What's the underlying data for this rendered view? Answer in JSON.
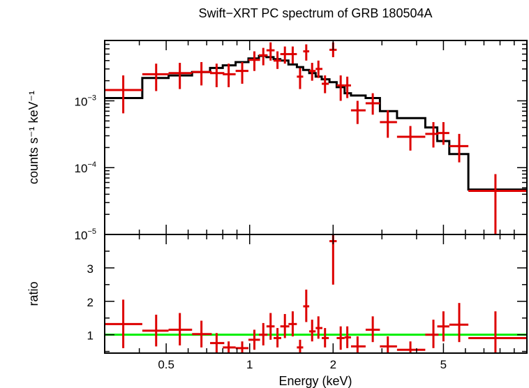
{
  "chart_data": [
    {
      "type": "scatter",
      "title": "Swift−XRT PC spectrum of GRB 180504A",
      "xlabel": "",
      "ylabel": "counts s⁻¹ keV⁻¹",
      "xscale": "log",
      "yscale": "log",
      "xlim": [
        0.3,
        10
      ],
      "ylim": [
        1e-05,
        0.008
      ],
      "yticks": [
        {
          "value": 0.001,
          "base": "10",
          "exp": "−3"
        },
        {
          "value": 0.0001,
          "base": "10",
          "exp": "−4"
        },
        {
          "value": 1e-05,
          "base": "10",
          "exp": "−5"
        }
      ],
      "series": [
        {
          "name": "",
          "color": "#dd0000",
          "points": [
            {
              "x": 0.35,
              "xlo": 0.3,
              "xhi": 0.41,
              "y": 0.00145,
              "ylo": 0.00065,
              "yhi": 0.0024
            },
            {
              "x": 0.46,
              "xlo": 0.41,
              "xhi": 0.51,
              "y": 0.0025,
              "ylo": 0.0014,
              "yhi": 0.0036
            },
            {
              "x": 0.56,
              "xlo": 0.51,
              "xhi": 0.62,
              "y": 0.0026,
              "ylo": 0.0015,
              "yhi": 0.0037
            },
            {
              "x": 0.67,
              "xlo": 0.62,
              "xhi": 0.73,
              "y": 0.0027,
              "ylo": 0.0017,
              "yhi": 0.0038
            },
            {
              "x": 0.76,
              "xlo": 0.72,
              "xhi": 0.81,
              "y": 0.0026,
              "ylo": 0.0016,
              "yhi": 0.0036
            },
            {
              "x": 0.84,
              "xlo": 0.8,
              "xhi": 0.89,
              "y": 0.0025,
              "ylo": 0.0016,
              "yhi": 0.0036
            },
            {
              "x": 0.94,
              "xlo": 0.89,
              "xhi": 0.99,
              "y": 0.0028,
              "ylo": 0.0018,
              "yhi": 0.0038
            },
            {
              "x": 1.04,
              "xlo": 0.99,
              "xhi": 1.09,
              "y": 0.0041,
              "ylo": 0.0028,
              "yhi": 0.0055
            },
            {
              "x": 1.12,
              "xlo": 1.08,
              "xhi": 1.16,
              "y": 0.0048,
              "ylo": 0.0034,
              "yhi": 0.0062
            },
            {
              "x": 1.19,
              "xlo": 1.15,
              "xhi": 1.23,
              "y": 0.0057,
              "ylo": 0.004,
              "yhi": 0.0075
            },
            {
              "x": 1.26,
              "xlo": 1.22,
              "xhi": 1.3,
              "y": 0.004,
              "ylo": 0.003,
              "yhi": 0.0055
            },
            {
              "x": 1.34,
              "xlo": 1.29,
              "xhi": 1.39,
              "y": 0.005,
              "ylo": 0.0036,
              "yhi": 0.0065
            },
            {
              "x": 1.43,
              "xlo": 1.38,
              "xhi": 1.48,
              "y": 0.005,
              "ylo": 0.0036,
              "yhi": 0.0065
            },
            {
              "x": 1.52,
              "xlo": 1.48,
              "xhi": 1.56,
              "y": 0.0023,
              "ylo": 0.0015,
              "yhi": 0.0031
            },
            {
              "x": 1.6,
              "xlo": 1.56,
              "xhi": 1.64,
              "y": 0.0055,
              "ylo": 0.004,
              "yhi": 0.007
            },
            {
              "x": 1.68,
              "xlo": 1.64,
              "xhi": 1.73,
              "y": 0.0028,
              "ylo": 0.002,
              "yhi": 0.0037
            },
            {
              "x": 1.77,
              "xlo": 1.73,
              "xhi": 1.83,
              "y": 0.003,
              "ylo": 0.0022,
              "yhi": 0.004
            },
            {
              "x": 1.87,
              "xlo": 1.82,
              "xhi": 1.93,
              "y": 0.0018,
              "ylo": 0.0013,
              "yhi": 0.0024
            },
            {
              "x": 2.0,
              "xlo": 1.94,
              "xhi": 2.06,
              "y": 0.0058,
              "ylo": 0.0045,
              "yhi": 0.0075
            },
            {
              "x": 2.13,
              "xlo": 2.06,
              "xhi": 2.2,
              "y": 0.0017,
              "ylo": 0.001,
              "yhi": 0.0024
            },
            {
              "x": 2.25,
              "xlo": 2.2,
              "xhi": 2.32,
              "y": 0.0017,
              "ylo": 0.0011,
              "yhi": 0.0023
            },
            {
              "x": 2.45,
              "xlo": 2.32,
              "xhi": 2.62,
              "y": 0.00072,
              "ylo": 0.00045,
              "yhi": 0.001
            },
            {
              "x": 2.78,
              "xlo": 2.62,
              "xhi": 2.95,
              "y": 0.00092,
              "ylo": 0.00062,
              "yhi": 0.0013
            },
            {
              "x": 3.15,
              "xlo": 2.95,
              "xhi": 3.4,
              "y": 0.00048,
              "ylo": 0.00028,
              "yhi": 0.00072
            },
            {
              "x": 3.8,
              "xlo": 3.4,
              "xhi": 4.3,
              "y": 0.00029,
              "ylo": 0.00018,
              "yhi": 0.00042
            },
            {
              "x": 4.6,
              "xlo": 4.3,
              "xhi": 4.8,
              "y": 0.00032,
              "ylo": 0.0002,
              "yhi": 0.00048
            },
            {
              "x": 5.0,
              "xlo": 4.75,
              "xhi": 5.25,
              "y": 0.00033,
              "ylo": 0.00022,
              "yhi": 0.00048
            },
            {
              "x": 5.7,
              "xlo": 5.25,
              "xhi": 6.15,
              "y": 0.00021,
              "ylo": 0.00012,
              "yhi": 0.00032
            },
            {
              "x": 7.7,
              "xlo": 6.15,
              "xhi": 10.0,
              "y": 4.5e-05,
              "ylo": 1e-05,
              "yhi": 8e-05
            }
          ]
        }
      ],
      "model": {
        "name": "",
        "color": "#000000",
        "edges": [
          0.3,
          0.41,
          0.51,
          0.62,
          0.72,
          0.8,
          0.89,
          0.99,
          1.08,
          1.15,
          1.22,
          1.29,
          1.38,
          1.48,
          1.56,
          1.64,
          1.73,
          1.82,
          1.94,
          2.06,
          2.2,
          2.32,
          2.62,
          2.95,
          3.4,
          4.3,
          4.75,
          5.25,
          6.15,
          10.0
        ],
        "values": [
          0.0011,
          0.0022,
          0.0024,
          0.0027,
          0.0031,
          0.0034,
          0.0038,
          0.0043,
          0.0047,
          0.0045,
          0.0042,
          0.004,
          0.0035,
          0.0032,
          0.0029,
          0.0026,
          0.0023,
          0.0021,
          0.0019,
          0.0016,
          0.0013,
          0.0012,
          0.0011,
          0.0007,
          0.00055,
          0.0004,
          0.00025,
          0.00016,
          4.7e-05
        ]
      }
    },
    {
      "type": "scatter",
      "title": "",
      "xlabel": "Energy (keV)",
      "ylabel": "ratio",
      "xscale": "log",
      "yscale": "linear",
      "xlim": [
        0.3,
        10
      ],
      "ylim": [
        0.45,
        4.0
      ],
      "xticks": [
        {
          "value": 0.5,
          "label": "0.5"
        },
        {
          "value": 1,
          "label": "1"
        },
        {
          "value": 2,
          "label": "2"
        },
        {
          "value": 5,
          "label": "5"
        }
      ],
      "yticks": [
        {
          "value": 1,
          "label": "1"
        },
        {
          "value": 2,
          "label": "2"
        },
        {
          "value": 3,
          "label": "3"
        }
      ],
      "reference_line": {
        "y": 1,
        "color": "#00ee00"
      },
      "series": [
        {
          "name": "",
          "color": "#dd0000",
          "points": [
            {
              "x": 0.35,
              "xlo": 0.3,
              "xhi": 0.41,
              "y": 1.32,
              "ylo": 0.6,
              "yhi": 2.05
            },
            {
              "x": 0.46,
              "xlo": 0.41,
              "xhi": 0.51,
              "y": 1.12,
              "ylo": 0.65,
              "yhi": 1.6
            },
            {
              "x": 0.56,
              "xlo": 0.51,
              "xhi": 0.62,
              "y": 1.15,
              "ylo": 0.68,
              "yhi": 1.65
            },
            {
              "x": 0.67,
              "xlo": 0.62,
              "xhi": 0.73,
              "y": 1.02,
              "ylo": 0.62,
              "yhi": 1.42
            },
            {
              "x": 0.76,
              "xlo": 0.72,
              "xhi": 0.81,
              "y": 0.75,
              "ylo": 0.45,
              "yhi": 1.05
            },
            {
              "x": 0.84,
              "xlo": 0.8,
              "xhi": 0.89,
              "y": 0.62,
              "ylo": 0.45,
              "yhi": 0.8
            },
            {
              "x": 0.94,
              "xlo": 0.89,
              "xhi": 0.99,
              "y": 0.6,
              "ylo": 0.45,
              "yhi": 0.8
            },
            {
              "x": 1.04,
              "xlo": 0.99,
              "xhi": 1.09,
              "y": 0.85,
              "ylo": 0.55,
              "yhi": 1.15
            },
            {
              "x": 1.12,
              "xlo": 1.08,
              "xhi": 1.16,
              "y": 1.0,
              "ylo": 0.68,
              "yhi": 1.35
            },
            {
              "x": 1.19,
              "xlo": 1.15,
              "xhi": 1.23,
              "y": 1.25,
              "ylo": 0.85,
              "yhi": 1.65
            },
            {
              "x": 1.26,
              "xlo": 1.22,
              "xhi": 1.3,
              "y": 0.9,
              "ylo": 0.62,
              "yhi": 1.2
            },
            {
              "x": 1.34,
              "xlo": 1.29,
              "xhi": 1.39,
              "y": 1.25,
              "ylo": 0.9,
              "yhi": 1.62
            },
            {
              "x": 1.43,
              "xlo": 1.38,
              "xhi": 1.48,
              "y": 1.32,
              "ylo": 0.95,
              "yhi": 1.7
            },
            {
              "x": 1.52,
              "xlo": 1.48,
              "xhi": 1.56,
              "y": 0.62,
              "ylo": 0.45,
              "yhi": 0.85
            },
            {
              "x": 1.6,
              "xlo": 1.56,
              "xhi": 1.64,
              "y": 1.85,
              "ylo": 1.38,
              "yhi": 2.35
            },
            {
              "x": 1.68,
              "xlo": 1.64,
              "xhi": 1.73,
              "y": 1.1,
              "ylo": 0.8,
              "yhi": 1.45
            },
            {
              "x": 1.77,
              "xlo": 1.73,
              "xhi": 1.83,
              "y": 1.2,
              "ylo": 0.88,
              "yhi": 1.55
            },
            {
              "x": 1.87,
              "xlo": 1.82,
              "xhi": 1.93,
              "y": 0.9,
              "ylo": 0.62,
              "yhi": 1.2
            },
            {
              "x": 2.0,
              "xlo": 1.94,
              "xhi": 2.06,
              "y": 3.8,
              "ylo": 2.5,
              "yhi": 4.0
            },
            {
              "x": 2.13,
              "xlo": 2.06,
              "xhi": 2.2,
              "y": 0.9,
              "ylo": 0.55,
              "yhi": 1.25
            },
            {
              "x": 2.25,
              "xlo": 2.2,
              "xhi": 2.32,
              "y": 0.92,
              "ylo": 0.6,
              "yhi": 1.25
            },
            {
              "x": 2.45,
              "xlo": 2.32,
              "xhi": 2.62,
              "y": 0.65,
              "ylo": 0.45,
              "yhi": 0.95
            },
            {
              "x": 2.78,
              "xlo": 2.62,
              "xhi": 2.95,
              "y": 1.15,
              "ylo": 0.78,
              "yhi": 1.55
            },
            {
              "x": 3.15,
              "xlo": 2.95,
              "xhi": 3.4,
              "y": 0.65,
              "ylo": 0.45,
              "yhi": 0.95
            },
            {
              "x": 3.8,
              "xlo": 3.4,
              "xhi": 4.3,
              "y": 0.55,
              "ylo": 0.45,
              "yhi": 0.8
            },
            {
              "x": 4.6,
              "xlo": 4.3,
              "xhi": 4.8,
              "y": 1.0,
              "ylo": 0.6,
              "yhi": 1.45
            },
            {
              "x": 5.0,
              "xlo": 4.75,
              "xhi": 5.25,
              "y": 1.25,
              "ylo": 0.8,
              "yhi": 1.7
            },
            {
              "x": 5.7,
              "xlo": 5.25,
              "xhi": 6.15,
              "y": 1.3,
              "ylo": 0.78,
              "yhi": 1.95
            },
            {
              "x": 7.7,
              "xlo": 6.15,
              "xhi": 10.0,
              "y": 0.9,
              "ylo": 0.45,
              "yhi": 1.7
            }
          ]
        }
      ]
    }
  ]
}
